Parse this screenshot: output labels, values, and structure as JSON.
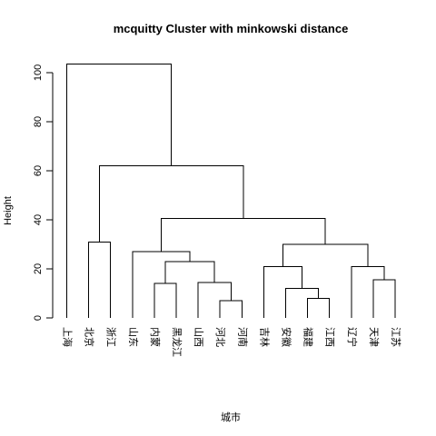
{
  "chart_data": {
    "type": "dendrogram",
    "title": "mcquitty Cluster with minkowski distance",
    "xlabel": "城市",
    "ylabel": "Height",
    "ylim": [
      0,
      105
    ],
    "yticks": [
      0,
      20,
      40,
      60,
      80,
      100
    ],
    "leaves": [
      "上海",
      "北京",
      "浙江",
      "山东",
      "内蒙",
      "黑龙江",
      "山西",
      "河北",
      "河南",
      "吉林",
      "安徽",
      "福建",
      "江西",
      "辽宁",
      "天津",
      "江苏"
    ],
    "merges": [
      {
        "a": {
          "leaf": 7
        },
        "b": {
          "leaf": 8
        },
        "height": 7
      },
      {
        "a": {
          "leaf": 11
        },
        "b": {
          "leaf": 12
        },
        "height": 8
      },
      {
        "a": {
          "leaf": 10
        },
        "b": {
          "node": 1
        },
        "height": 12
      },
      {
        "a": {
          "leaf": 4
        },
        "b": {
          "leaf": 5
        },
        "height": 14
      },
      {
        "a": {
          "leaf": 6
        },
        "b": {
          "node": 0
        },
        "height": 14.5
      },
      {
        "a": {
          "leaf": 14
        },
        "b": {
          "leaf": 15
        },
        "height": 15.5
      },
      {
        "a": {
          "leaf": 9
        },
        "b": {
          "node": 2
        },
        "height": 21
      },
      {
        "a": {
          "leaf": 13
        },
        "b": {
          "node": 5
        },
        "height": 21
      },
      {
        "a": {
          "node": 3
        },
        "b": {
          "node": 4
        },
        "height": 23
      },
      {
        "a": {
          "leaf": 3
        },
        "b": {
          "node": 8
        },
        "height": 27
      },
      {
        "a": {
          "node": 6
        },
        "b": {
          "node": 7
        },
        "height": 30
      },
      {
        "a": {
          "leaf": 1
        },
        "b": {
          "leaf": 2
        },
        "height": 31
      },
      {
        "a": {
          "node": 9
        },
        "b": {
          "node": 10
        },
        "height": 40.5
      },
      {
        "a": {
          "node": 11
        },
        "b": {
          "node": 12
        },
        "height": 62
      },
      {
        "a": {
          "leaf": 0
        },
        "b": {
          "node": 13
        },
        "height": 103.5
      }
    ]
  }
}
